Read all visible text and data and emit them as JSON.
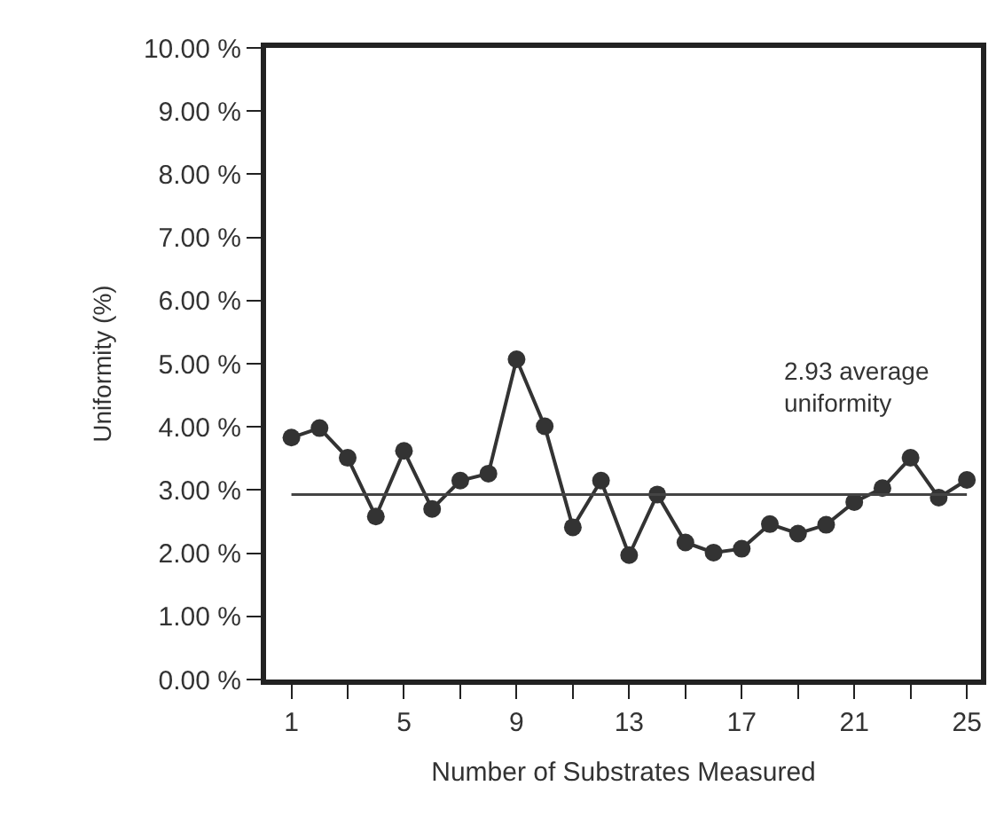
{
  "chart_data": {
    "type": "line",
    "xlabel": "Number of Substrates Measured",
    "ylabel": "Uniformity (%)",
    "x": [
      1,
      2,
      3,
      4,
      5,
      6,
      7,
      8,
      9,
      10,
      11,
      12,
      13,
      14,
      15,
      16,
      17,
      18,
      19,
      20,
      21,
      22,
      23,
      24,
      25
    ],
    "series": [
      {
        "color": "#333333",
        "values": [
          3.83,
          3.98,
          3.51,
          2.58,
          3.62,
          2.7,
          3.15,
          3.26,
          5.07,
          4.01,
          2.41,
          3.15,
          1.97,
          2.93,
          2.17,
          2.01,
          2.07,
          2.46,
          2.31,
          2.45,
          2.81,
          3.03,
          3.51,
          2.88,
          3.16
        ]
      }
    ],
    "marker": "circle",
    "line_style": "solid",
    "xlim": [
      0.1,
      25.5
    ],
    "xticks": [
      1,
      {
        "value": 3,
        "label": null
      },
      5,
      {
        "value": 7,
        "label": null
      },
      9,
      {
        "value": 11,
        "label": null
      },
      13,
      {
        "value": 15,
        "label": null
      },
      17,
      {
        "value": 19,
        "label": null
      },
      21,
      {
        "value": 23,
        "label": null
      },
      25
    ],
    "ylim": [
      0,
      10
    ],
    "yticks": [
      {
        "value": 0,
        "label": "0.00 %"
      },
      {
        "value": 1,
        "label": "1.00 %"
      },
      {
        "value": 2,
        "label": "2.00 %"
      },
      {
        "value": 3,
        "label": "3.00 %"
      },
      {
        "value": 4,
        "label": "4.00 %"
      },
      {
        "value": 5,
        "label": "5.00 %"
      },
      {
        "value": 6,
        "label": "6.00 %"
      },
      {
        "value": 7,
        "label": "7.00 %"
      },
      {
        "value": 8,
        "label": "8.00 %"
      },
      {
        "value": 9,
        "label": "9.00 %"
      },
      {
        "value": 10,
        "label": "10.00 %"
      }
    ],
    "ref_lines": [
      {
        "axis": "y",
        "value": 2.93,
        "label": "2.93 average\nuniformity",
        "color": "#444444",
        "line_style": "solid"
      }
    ]
  }
}
